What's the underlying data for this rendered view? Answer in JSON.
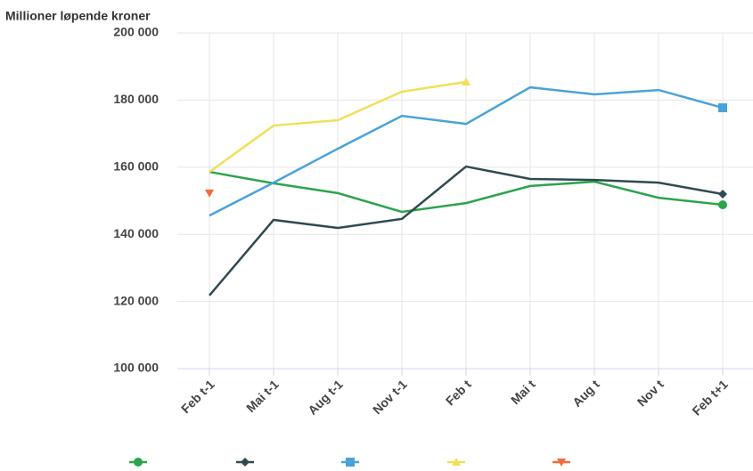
{
  "chart_data": {
    "type": "line",
    "y_axis_title": "Millioner løpende kroner",
    "categories": [
      "Feb t-1",
      "Mai t-1",
      "Aug t-1",
      "Nov t-1",
      "Feb t",
      "Mai t",
      "Aug t",
      "Nov t",
      "Feb t+1"
    ],
    "ylim": [
      100000,
      200000
    ],
    "yticks": [
      {
        "value": 100000,
        "label": "100 000"
      },
      {
        "value": 120000,
        "label": "120 000"
      },
      {
        "value": 140000,
        "label": "140 000"
      },
      {
        "value": 160000,
        "label": "160 000"
      },
      {
        "value": 180000,
        "label": "180 000"
      },
      {
        "value": 200000,
        "label": "200 000"
      }
    ],
    "grid": true,
    "legend": "bottom",
    "series": [
      {
        "color": "#2ca44e",
        "marker": "circle",
        "values": [
          158600,
          155200,
          152300,
          146700,
          149300,
          154400,
          155700,
          150900,
          148800
        ]
      },
      {
        "color": "#2f4a4f",
        "marker": "diamond",
        "values": [
          121800,
          144300,
          141900,
          144600,
          160200,
          156500,
          156200,
          155400,
          152000
        ]
      },
      {
        "color": "#4aa3d8",
        "marker": "square",
        "values": [
          145600,
          155400,
          165500,
          175300,
          172900,
          183800,
          181700,
          183000,
          177700
        ]
      },
      {
        "color": "#f0e05a",
        "marker": "triangle",
        "values": [
          158600,
          172400,
          174000,
          182500,
          185400,
          null,
          null,
          null,
          null
        ]
      },
      {
        "color": "#f26b3a",
        "marker": "triangle-down",
        "values": [
          152300,
          null,
          null,
          null,
          null,
          null,
          null,
          null,
          null
        ]
      }
    ]
  }
}
